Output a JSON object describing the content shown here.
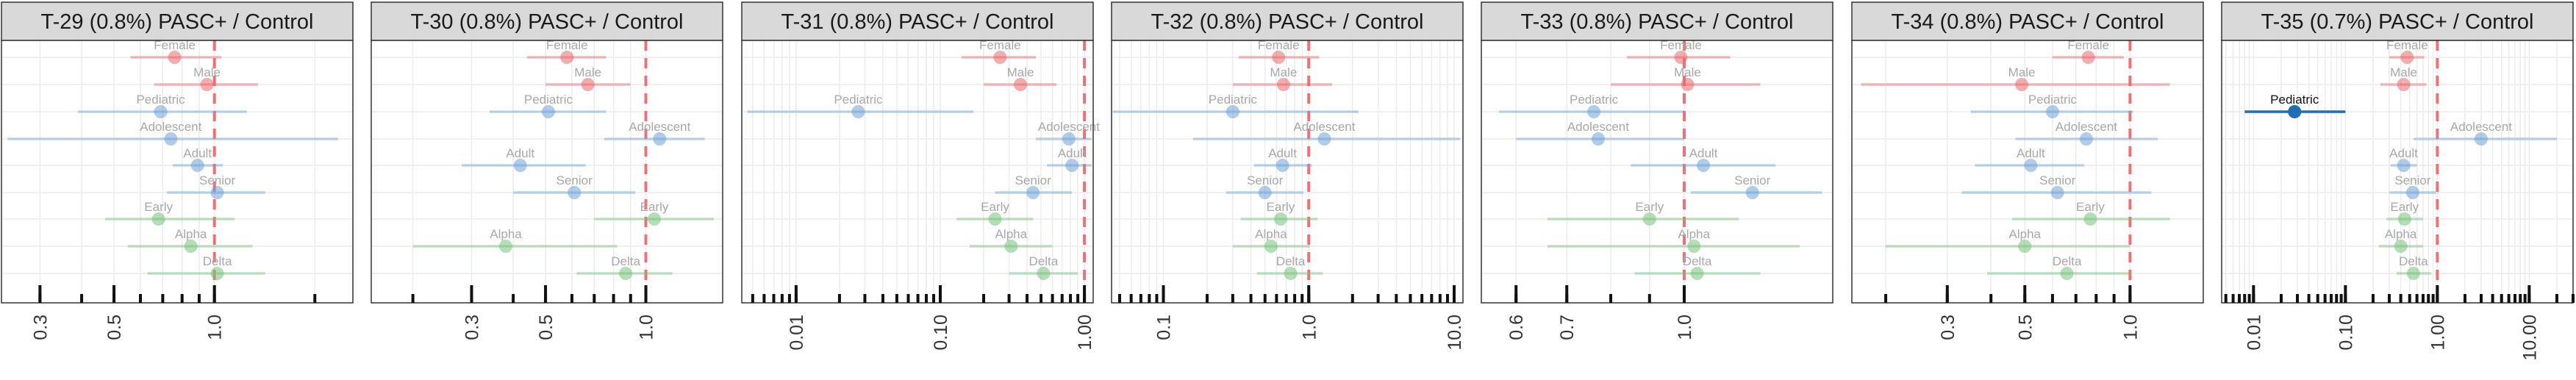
{
  "colors": {
    "sex": "#e8696b",
    "age": "#6fa3d6",
    "variant": "#78c27a",
    "highlight": "#1f6fb5",
    "ref_line": "#ee5a5f",
    "strip_bg": "#d9d9d9",
    "grid": "#ececec"
  },
  "chart_data": [
    {
      "type": "scatter",
      "title": "T-29 (0.8%) PASC+ / Control",
      "scale": "log",
      "xlim": [
        0.23,
        2.6
      ],
      "tick_values": [
        0.3,
        0.5,
        1.0
      ],
      "tick_labels": [
        "0.3",
        "0.5",
        "1.0"
      ],
      "minor_ticks": [
        0.2,
        0.3,
        0.4,
        0.5,
        0.6,
        0.7,
        0.8,
        0.9,
        1,
        2
      ],
      "reference_line": 1.0,
      "rows": [
        {
          "label": "Female",
          "group": "sex",
          "estimate": 0.76,
          "low": 0.56,
          "high": 1.05,
          "highlight": false
        },
        {
          "label": "Male",
          "group": "sex",
          "estimate": 0.95,
          "low": 0.66,
          "high": 1.35,
          "highlight": false
        },
        {
          "label": "Pediatric",
          "group": "age",
          "estimate": 0.69,
          "low": 0.39,
          "high": 1.25,
          "highlight": false
        },
        {
          "label": "Adolescent",
          "group": "age",
          "estimate": 0.74,
          "low": 0.24,
          "high": 2.35,
          "highlight": false
        },
        {
          "label": "Adult",
          "group": "age",
          "estimate": 0.89,
          "low": 0.75,
          "high": 1.06,
          "highlight": false
        },
        {
          "label": "Senior",
          "group": "age",
          "estimate": 1.02,
          "low": 0.72,
          "high": 1.42,
          "highlight": false
        },
        {
          "label": "Early",
          "group": "variant",
          "estimate": 0.68,
          "low": 0.47,
          "high": 1.15,
          "highlight": false
        },
        {
          "label": "Alpha",
          "group": "variant",
          "estimate": 0.85,
          "low": 0.55,
          "high": 1.3,
          "highlight": false
        },
        {
          "label": "Delta",
          "group": "variant",
          "estimate": 1.02,
          "low": 0.63,
          "high": 1.42,
          "highlight": false
        }
      ]
    },
    {
      "type": "scatter",
      "title": "T-30 (0.8%) PASC+ / Control",
      "scale": "log",
      "xlim": [
        0.15,
        1.7
      ],
      "tick_values": [
        0.3,
        0.5,
        1.0
      ],
      "tick_labels": [
        "0.3",
        "0.5",
        "1.0"
      ],
      "minor_ticks": [
        0.2,
        0.3,
        0.4,
        0.5,
        0.6,
        0.7,
        0.8,
        0.9,
        1
      ],
      "reference_line": 1.0,
      "rows": [
        {
          "label": "Female",
          "group": "sex",
          "estimate": 0.58,
          "low": 0.44,
          "high": 0.76,
          "highlight": false
        },
        {
          "label": "Male",
          "group": "sex",
          "estimate": 0.67,
          "low": 0.5,
          "high": 0.9,
          "highlight": false
        },
        {
          "label": "Pediatric",
          "group": "age",
          "estimate": 0.51,
          "low": 0.34,
          "high": 0.76,
          "highlight": false
        },
        {
          "label": "Adolescent",
          "group": "age",
          "estimate": 1.1,
          "low": 0.75,
          "high": 1.5,
          "highlight": false
        },
        {
          "label": "Adult",
          "group": "age",
          "estimate": 0.42,
          "low": 0.28,
          "high": 0.66,
          "highlight": false
        },
        {
          "label": "Senior",
          "group": "age",
          "estimate": 0.61,
          "low": 0.4,
          "high": 0.93,
          "highlight": false
        },
        {
          "label": "Early",
          "group": "variant",
          "estimate": 1.06,
          "low": 0.7,
          "high": 1.6,
          "highlight": false
        },
        {
          "label": "Alpha",
          "group": "variant",
          "estimate": 0.38,
          "low": 0.2,
          "high": 0.82,
          "highlight": false
        },
        {
          "label": "Delta",
          "group": "variant",
          "estimate": 0.87,
          "low": 0.62,
          "high": 1.2,
          "highlight": false
        }
      ]
    },
    {
      "type": "scatter",
      "title": "T-31 (0.8%) PASC+ / Control",
      "scale": "log",
      "xlim": [
        0.0042,
        1.15
      ],
      "tick_values": [
        0.01,
        0.1,
        1.0
      ],
      "tick_labels": [
        "0.01",
        "0.10",
        "1.00"
      ],
      "minor_ticks": [
        0.005,
        0.006,
        0.007,
        0.008,
        0.009,
        0.01,
        0.02,
        0.03,
        0.04,
        0.05,
        0.06,
        0.07,
        0.08,
        0.09,
        0.1,
        0.2,
        0.3,
        0.4,
        0.5,
        0.6,
        0.7,
        0.8,
        0.9,
        1
      ],
      "reference_line": 1.0,
      "rows": [
        {
          "label": "Female",
          "group": "sex",
          "estimate": 0.26,
          "low": 0.14,
          "high": 0.46,
          "highlight": false
        },
        {
          "label": "Male",
          "group": "sex",
          "estimate": 0.36,
          "low": 0.2,
          "high": 0.64,
          "highlight": false
        },
        {
          "label": "Pediatric",
          "group": "age",
          "estimate": 0.027,
          "low": 0.0046,
          "high": 0.17,
          "highlight": false
        },
        {
          "label": "Adolescent",
          "group": "age",
          "estimate": 0.78,
          "low": 0.46,
          "high": 1.12,
          "highlight": false
        },
        {
          "label": "Adult",
          "group": "age",
          "estimate": 0.82,
          "low": 0.55,
          "high": 1.12,
          "highlight": false
        },
        {
          "label": "Senior",
          "group": "age",
          "estimate": 0.44,
          "low": 0.24,
          "high": 0.82,
          "highlight": false
        },
        {
          "label": "Early",
          "group": "variant",
          "estimate": 0.24,
          "low": 0.13,
          "high": 0.44,
          "highlight": false
        },
        {
          "label": "Alpha",
          "group": "variant",
          "estimate": 0.31,
          "low": 0.16,
          "high": 0.6,
          "highlight": false
        },
        {
          "label": "Delta",
          "group": "variant",
          "estimate": 0.52,
          "low": 0.3,
          "high": 0.9,
          "highlight": false
        }
      ]
    },
    {
      "type": "scatter",
      "title": "T-32 (0.8%) PASC+ / Control",
      "scale": "log",
      "xlim": [
        0.044,
        11.5
      ],
      "tick_values": [
        0.1,
        1.0,
        10.0
      ],
      "tick_labels": [
        "0.1",
        "1.0",
        "10.0"
      ],
      "minor_ticks": [
        0.05,
        0.06,
        0.07,
        0.08,
        0.09,
        0.1,
        0.2,
        0.3,
        0.4,
        0.5,
        0.6,
        0.7,
        0.8,
        0.9,
        1,
        2,
        3,
        4,
        5,
        6,
        7,
        8,
        9,
        10
      ],
      "reference_line": 1.0,
      "rows": [
        {
          "label": "Female",
          "group": "sex",
          "estimate": 0.62,
          "low": 0.33,
          "high": 1.18,
          "highlight": false
        },
        {
          "label": "Male",
          "group": "sex",
          "estimate": 0.67,
          "low": 0.3,
          "high": 1.45,
          "highlight": false
        },
        {
          "label": "Pediatric",
          "group": "age",
          "estimate": 0.3,
          "low": 0.045,
          "high": 2.2,
          "highlight": false
        },
        {
          "label": "Adolescent",
          "group": "age",
          "estimate": 1.28,
          "low": 0.16,
          "high": 11.0,
          "highlight": false
        },
        {
          "label": "Adult",
          "group": "age",
          "estimate": 0.66,
          "low": 0.42,
          "high": 1.05,
          "highlight": false
        },
        {
          "label": "Senior",
          "group": "age",
          "estimate": 0.5,
          "low": 0.27,
          "high": 0.92,
          "highlight": false
        },
        {
          "label": "Early",
          "group": "variant",
          "estimate": 0.64,
          "low": 0.34,
          "high": 1.15,
          "highlight": false
        },
        {
          "label": "Alpha",
          "group": "variant",
          "estimate": 0.55,
          "low": 0.3,
          "high": 1.02,
          "highlight": false
        },
        {
          "label": "Delta",
          "group": "variant",
          "estimate": 0.75,
          "low": 0.44,
          "high": 1.25,
          "highlight": false
        }
      ]
    },
    {
      "type": "scatter",
      "title": "T-33 (0.8%) PASC+ / Control",
      "scale": "log",
      "xlim": [
        0.54,
        1.57
      ],
      "tick_values": [
        0.6,
        0.7,
        1.0
      ],
      "tick_labels": [
        "0.6",
        "0.7",
        "1.0"
      ],
      "minor_ticks": [
        0.6,
        0.7,
        0.8,
        0.9,
        1
      ],
      "reference_line": 1.0,
      "rows": [
        {
          "label": "Female",
          "group": "sex",
          "estimate": 0.99,
          "low": 0.84,
          "high": 1.15,
          "highlight": false
        },
        {
          "label": "Male",
          "group": "sex",
          "estimate": 1.01,
          "low": 0.8,
          "high": 1.26,
          "highlight": false
        },
        {
          "label": "Pediatric",
          "group": "age",
          "estimate": 0.76,
          "low": 0.57,
          "high": 1.0,
          "highlight": false
        },
        {
          "label": "Adolescent",
          "group": "age",
          "estimate": 0.77,
          "low": 0.6,
          "high": 1.0,
          "highlight": false
        },
        {
          "label": "Adult",
          "group": "age",
          "estimate": 1.06,
          "low": 0.85,
          "high": 1.32,
          "highlight": false
        },
        {
          "label": "Senior",
          "group": "age",
          "estimate": 1.23,
          "low": 1.02,
          "high": 1.52,
          "highlight": false
        },
        {
          "label": "Early",
          "group": "variant",
          "estimate": 0.9,
          "low": 0.66,
          "high": 1.18,
          "highlight": false
        },
        {
          "label": "Alpha",
          "group": "variant",
          "estimate": 1.03,
          "low": 0.66,
          "high": 1.42,
          "highlight": false
        },
        {
          "label": "Delta",
          "group": "variant",
          "estimate": 1.04,
          "low": 0.86,
          "high": 1.26,
          "highlight": false
        }
      ]
    },
    {
      "type": "scatter",
      "title": "T-34 (0.8%) PASC+ / Control",
      "scale": "log",
      "xlim": [
        0.16,
        1.62
      ],
      "tick_values": [
        0.3,
        0.5,
        1.0
      ],
      "tick_labels": [
        "0.3",
        "0.5",
        "1.0"
      ],
      "minor_ticks": [
        0.2,
        0.3,
        0.4,
        0.5,
        0.6,
        0.7,
        0.8,
        0.9,
        1
      ],
      "reference_line": 1.0,
      "rows": [
        {
          "label": "Female",
          "group": "sex",
          "estimate": 0.76,
          "low": 0.6,
          "high": 0.96,
          "highlight": false
        },
        {
          "label": "Male",
          "group": "sex",
          "estimate": 0.49,
          "low": 0.17,
          "high": 1.3,
          "highlight": false
        },
        {
          "label": "Pediatric",
          "group": "age",
          "estimate": 0.6,
          "low": 0.35,
          "high": 1.02,
          "highlight": false
        },
        {
          "label": "Adolescent",
          "group": "age",
          "estimate": 0.75,
          "low": 0.47,
          "high": 1.2,
          "highlight": false
        },
        {
          "label": "Adult",
          "group": "age",
          "estimate": 0.52,
          "low": 0.36,
          "high": 0.74,
          "highlight": false
        },
        {
          "label": "Senior",
          "group": "age",
          "estimate": 0.62,
          "low": 0.33,
          "high": 1.15,
          "highlight": false
        },
        {
          "label": "Early",
          "group": "variant",
          "estimate": 0.77,
          "low": 0.46,
          "high": 1.3,
          "highlight": false
        },
        {
          "label": "Alpha",
          "group": "variant",
          "estimate": 0.5,
          "low": 0.2,
          "high": 1.0,
          "highlight": false
        },
        {
          "label": "Delta",
          "group": "variant",
          "estimate": 0.66,
          "low": 0.39,
          "high": 1.0,
          "highlight": false
        }
      ]
    },
    {
      "type": "scatter",
      "title": "T-35 (0.7%) PASC+ / Control",
      "scale": "log",
      "xlim": [
        0.0045,
        30
      ],
      "tick_values": [
        0.01,
        0.1,
        1.0,
        10.0
      ],
      "tick_labels": [
        "0.01",
        "0.10",
        "1.00",
        "10.00"
      ],
      "minor_ticks": [
        0.005,
        0.006,
        0.007,
        0.008,
        0.009,
        0.01,
        0.02,
        0.03,
        0.04,
        0.05,
        0.06,
        0.07,
        0.08,
        0.09,
        0.1,
        0.2,
        0.3,
        0.4,
        0.5,
        0.6,
        0.7,
        0.8,
        0.9,
        1,
        2,
        3,
        4,
        5,
        6,
        7,
        8,
        9,
        10,
        20,
        30
      ],
      "reference_line": 1.0,
      "rows": [
        {
          "label": "Female",
          "group": "sex",
          "estimate": 0.47,
          "low": 0.3,
          "high": 0.72,
          "highlight": false
        },
        {
          "label": "Male",
          "group": "sex",
          "estimate": 0.43,
          "low": 0.24,
          "high": 0.76,
          "highlight": false
        },
        {
          "label": "Pediatric",
          "group": "age",
          "estimate": 0.028,
          "low": 0.008,
          "high": 0.1,
          "highlight": true
        },
        {
          "label": "Adolescent",
          "group": "age",
          "estimate": 3.0,
          "low": 0.55,
          "high": 20.0,
          "highlight": false
        },
        {
          "label": "Adult",
          "group": "age",
          "estimate": 0.43,
          "low": 0.31,
          "high": 0.6,
          "highlight": false
        },
        {
          "label": "Senior",
          "group": "age",
          "estimate": 0.54,
          "low": 0.3,
          "high": 0.97,
          "highlight": false
        },
        {
          "label": "Early",
          "group": "variant",
          "estimate": 0.44,
          "low": 0.28,
          "high": 0.7,
          "highlight": false
        },
        {
          "label": "Alpha",
          "group": "variant",
          "estimate": 0.4,
          "low": 0.23,
          "high": 0.7,
          "highlight": false
        },
        {
          "label": "Delta",
          "group": "variant",
          "estimate": 0.55,
          "low": 0.36,
          "high": 0.86,
          "highlight": false
        }
      ]
    }
  ]
}
